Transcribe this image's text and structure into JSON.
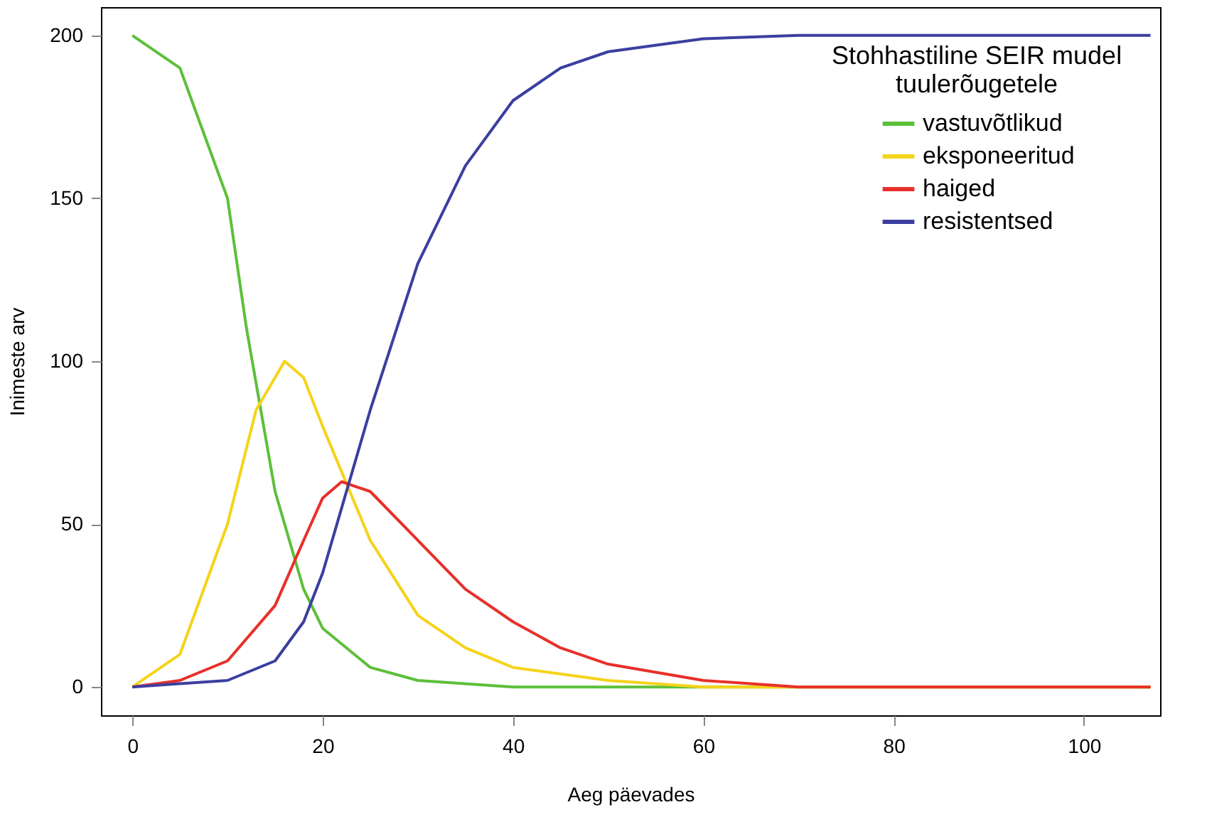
{
  "chart_data": {
    "type": "line",
    "xlabel": "Aeg päevades",
    "ylabel": "Inimeste arv",
    "legend_title": "Stohhastiline SEIR mudel\ntuulerõugetele",
    "legend": "top right",
    "grid": false,
    "marker": "none",
    "line_style": "solid",
    "xlim": [
      -3.3,
      108
    ],
    "xticks": [
      0,
      20,
      40,
      60,
      80,
      100
    ],
    "ylim": [
      -8.7,
      208.7
    ],
    "yticks": [
      0,
      50,
      100,
      150,
      200
    ],
    "series": [
      {
        "name": "vastuvõtlikud",
        "color": "#5dbf3a",
        "x": [
          0,
          5,
          10,
          12,
          15,
          18,
          20,
          25,
          30,
          40,
          107
        ],
        "values": [
          200,
          190,
          150,
          110,
          60,
          30,
          18,
          6,
          2,
          0,
          0
        ]
      },
      {
        "name": "eksponeeritud",
        "color": "#f5d31a",
        "x": [
          0,
          5,
          10,
          13,
          16,
          18,
          20,
          25,
          30,
          35,
          40,
          50,
          60,
          107
        ],
        "values": [
          0,
          10,
          50,
          85,
          100,
          95,
          80,
          45,
          22,
          12,
          6,
          2,
          0,
          0
        ]
      },
      {
        "name": "haiged",
        "color": "#e8302a",
        "x": [
          0,
          5,
          10,
          15,
          18,
          20,
          22,
          25,
          30,
          35,
          40,
          45,
          50,
          60,
          70,
          107
        ],
        "values": [
          0,
          2,
          8,
          25,
          45,
          58,
          63,
          60,
          45,
          30,
          20,
          12,
          7,
          2,
          0,
          0
        ]
      },
      {
        "name": "resistentsed",
        "color": "#3b3fa0",
        "x": [
          0,
          10,
          15,
          18,
          20,
          22,
          25,
          30,
          35,
          40,
          45,
          50,
          60,
          70,
          107
        ],
        "values": [
          0,
          2,
          8,
          20,
          35,
          55,
          85,
          130,
          160,
          180,
          190,
          195,
          199,
          200,
          200
        ]
      }
    ]
  }
}
